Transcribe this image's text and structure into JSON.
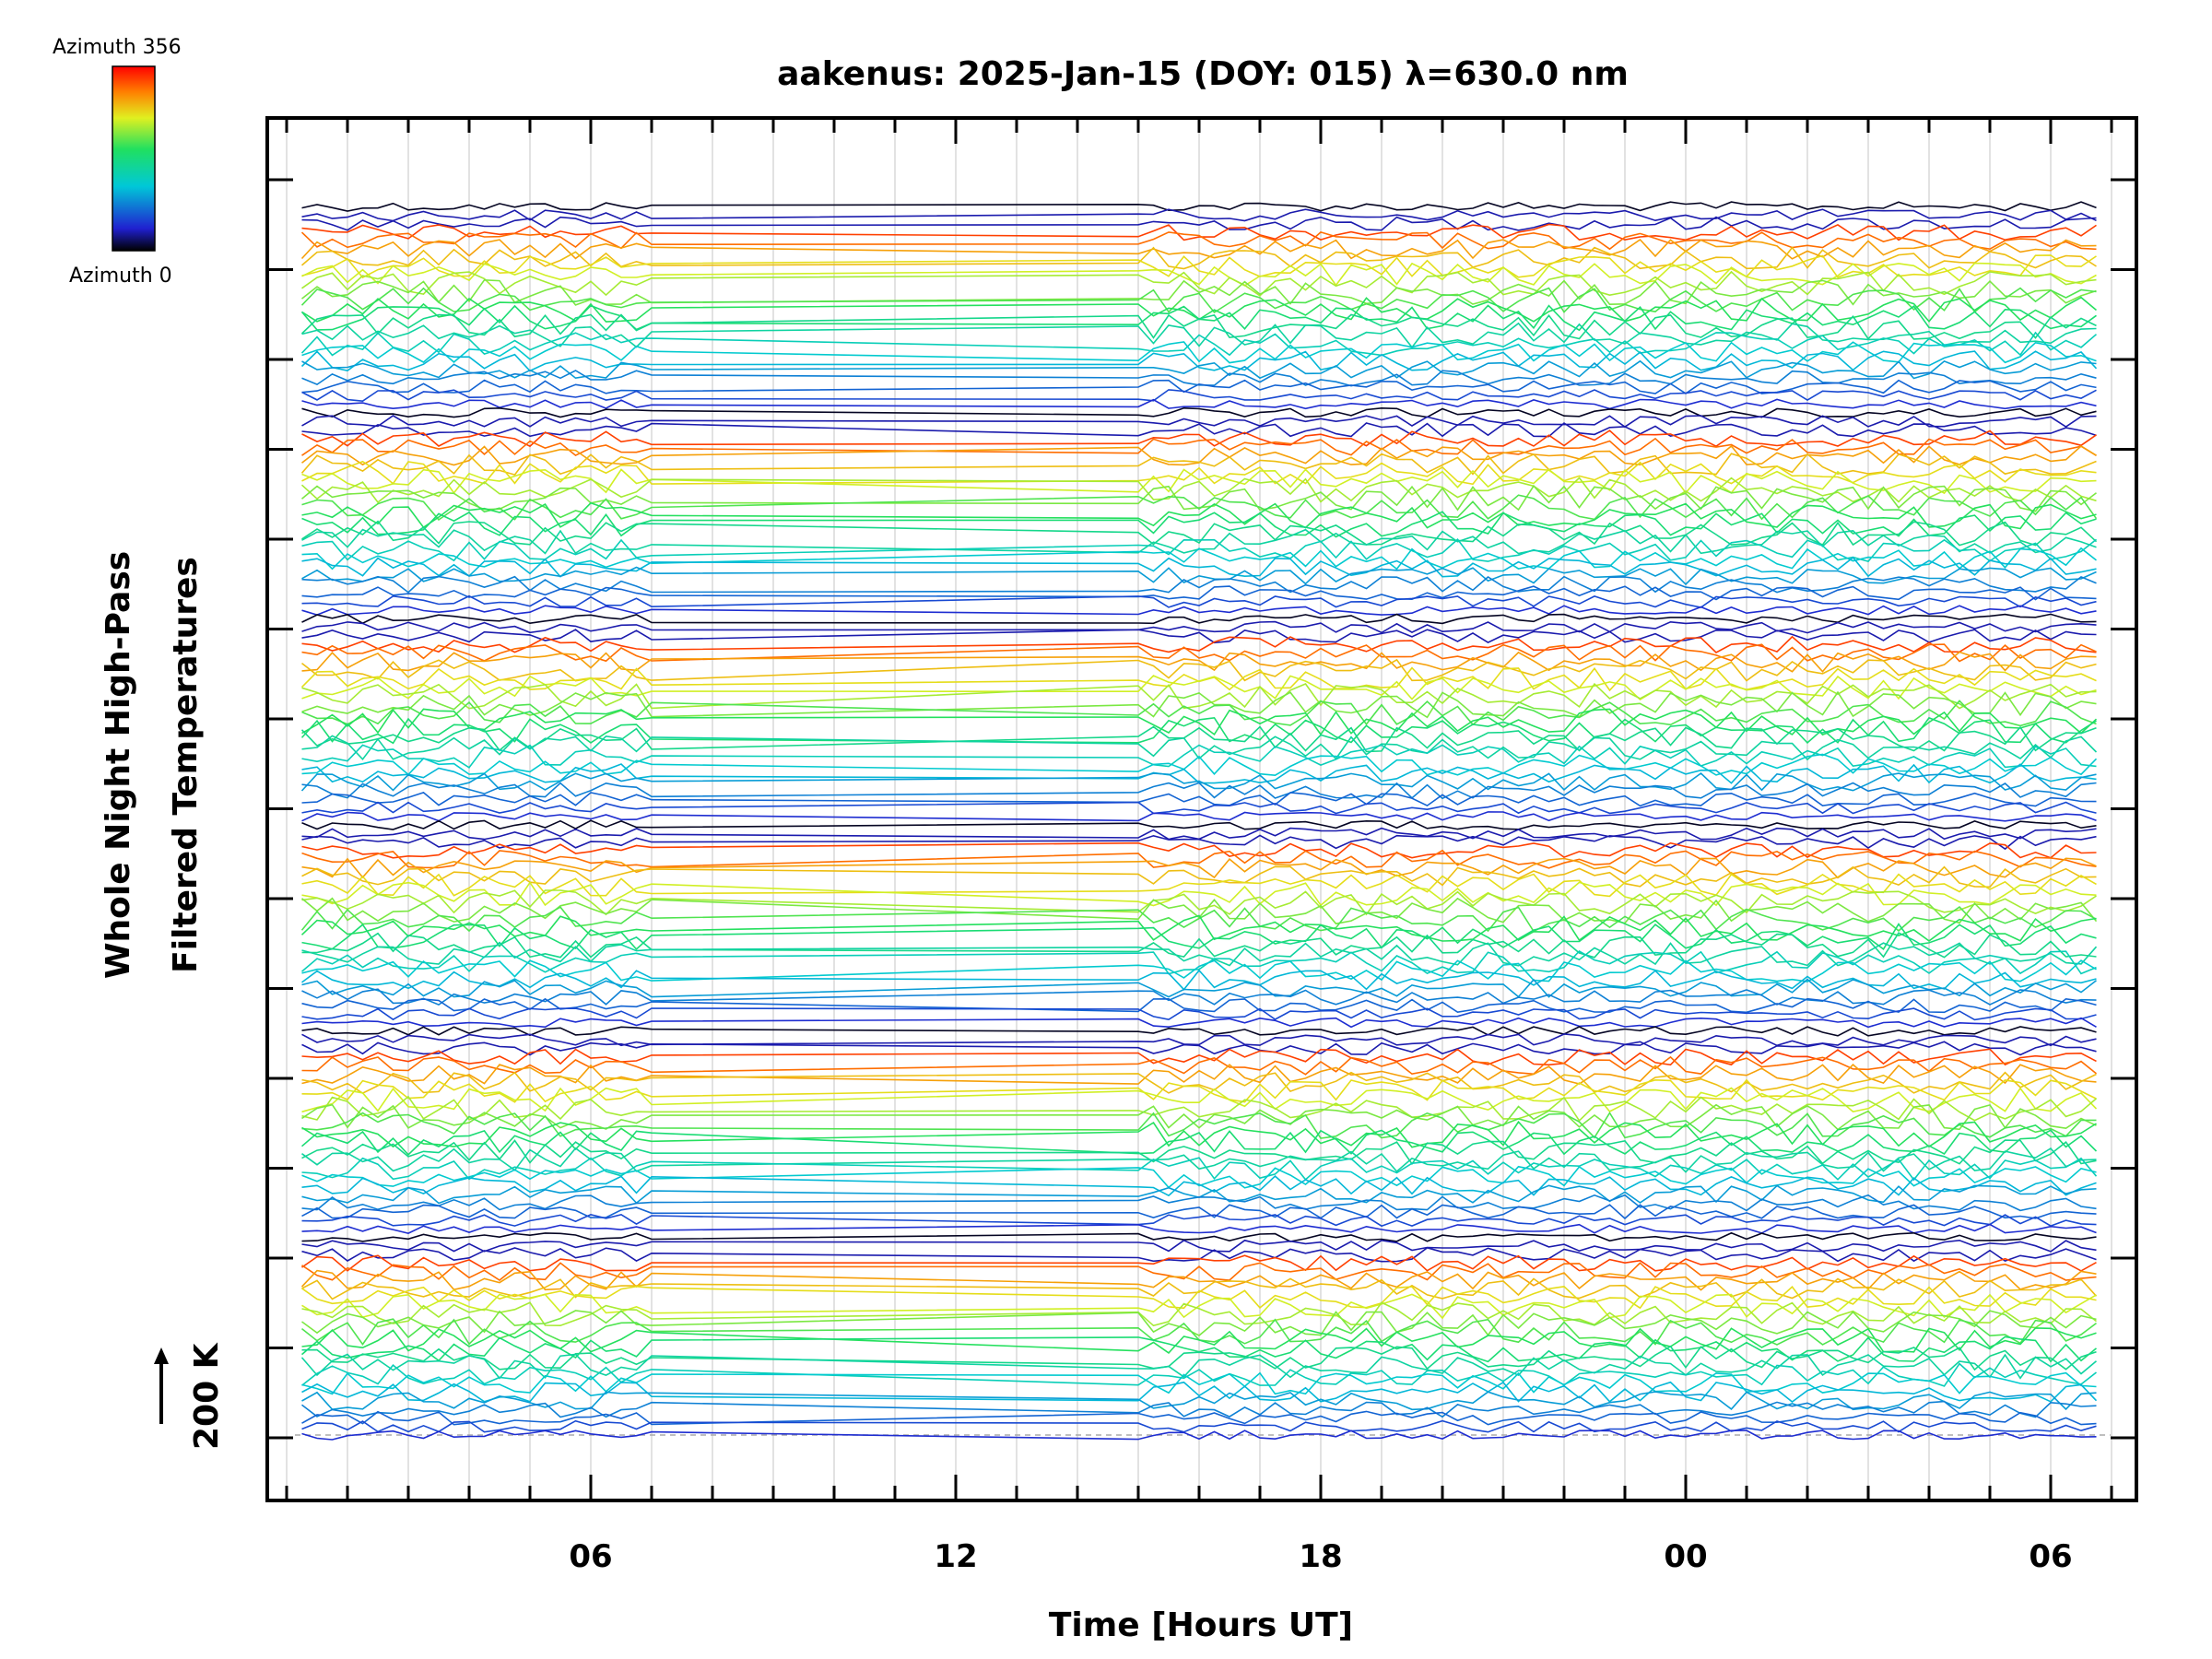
{
  "chart_data": {
    "type": "line",
    "title": "aakenus: 2025-Jan-15 (DOY: 015) λ=630.0 nm",
    "xlabel": "Time [Hours UT]",
    "ylabel_line1": "Whole Night High-Pass",
    "ylabel_line2": "Filtered Temperatures",
    "scale_label": "200 K",
    "xlim_hours_since_midnight_day0": [
      0.5,
      31.5
    ],
    "x_tick_labels": [
      "06",
      "12",
      "18",
      "00",
      "06"
    ],
    "x_tick_hours": [
      6,
      12,
      18,
      24,
      30
    ],
    "x_minor_tick_step_hours": 1,
    "data_gap_hours": [
      7.0,
      15.0
    ],
    "grid": true,
    "colorbar": {
      "top_label": "Azimuth 356",
      "bottom_label": "Azimuth 0",
      "min": 0,
      "max": 356,
      "colormap": "rainbow (black-blue-cyan-green-yellow-red)"
    },
    "series_groups": 6,
    "series_per_group": 24
  }
}
